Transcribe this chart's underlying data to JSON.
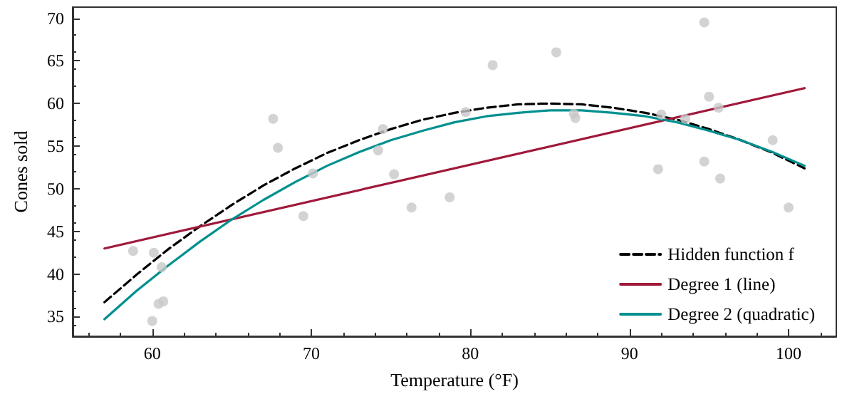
{
  "chart_data": {
    "type": "line",
    "xlabel": "Temperature (°F)",
    "ylabel": "Cones sold",
    "xlim": [
      55,
      103
    ],
    "ylim": [
      32.7,
      71.3
    ],
    "xticks": [
      60,
      70,
      80,
      90,
      100
    ],
    "yticks": [
      35,
      40,
      45,
      50,
      55,
      60,
      65,
      70
    ],
    "grid": false,
    "legend": "bottom right",
    "series": [
      {
        "type": "scatter",
        "color": "#c8c8c8",
        "marker": "circle",
        "x": [
          58.8,
          60.1,
          60.6,
          60.4,
          60.7,
          60.0,
          67.6,
          67.9,
          70.1,
          69.5,
          74.2,
          74.5,
          75.2,
          76.3,
          78.7,
          79.7,
          81.4,
          85.4,
          86.5,
          86.6,
          91.8,
          92.0,
          93.5,
          94.7,
          94.7,
          95.0,
          95.6,
          95.7,
          99.0,
          100.0
        ],
        "values": [
          42.7,
          42.5,
          40.8,
          36.5,
          36.8,
          34.5,
          58.2,
          54.8,
          51.8,
          46.8,
          54.5,
          57.0,
          51.7,
          47.8,
          49.0,
          59.0,
          64.5,
          66.0,
          58.8,
          58.3,
          52.3,
          58.7,
          58.2,
          53.2,
          69.5,
          60.8,
          59.5,
          51.2,
          55.7,
          47.8
        ]
      },
      {
        "name": "Hidden function f",
        "color": "#000000",
        "line_style": "dashed",
        "marker": "none",
        "x": [
          57,
          59,
          61,
          63,
          65,
          67,
          69,
          71,
          73,
          75,
          77,
          79,
          81,
          83,
          85,
          87,
          89,
          91,
          93,
          95,
          97,
          99,
          101
        ],
        "values": [
          36.7,
          39.9,
          42.9,
          45.6,
          48.1,
          50.4,
          52.4,
          54.2,
          55.7,
          57.0,
          58.1,
          58.9,
          59.5,
          59.9,
          60.0,
          59.9,
          59.5,
          58.9,
          58.1,
          57.0,
          55.7,
          54.2,
          52.4
        ]
      },
      {
        "name": "Degree 1 (line)",
        "color": "#a0183a",
        "line_style": "solid",
        "marker": "none",
        "x": [
          57,
          101
        ],
        "values": [
          43.0,
          61.8
        ]
      },
      {
        "name": "Degree 2 (quadratic)",
        "color": "#00908f",
        "line_style": "solid",
        "marker": "none",
        "x": [
          57,
          59,
          61,
          63,
          65,
          67,
          69,
          71,
          73,
          75,
          77,
          79,
          81,
          83,
          85,
          87,
          89,
          91,
          93,
          95,
          97,
          99,
          101
        ],
        "values": [
          34.7,
          38.0,
          41.0,
          43.8,
          46.4,
          48.7,
          50.8,
          52.7,
          54.3,
          55.7,
          56.8,
          57.8,
          58.5,
          58.9,
          59.2,
          59.2,
          58.9,
          58.5,
          57.8,
          56.8,
          55.7,
          54.3,
          52.7
        ]
      }
    ]
  }
}
